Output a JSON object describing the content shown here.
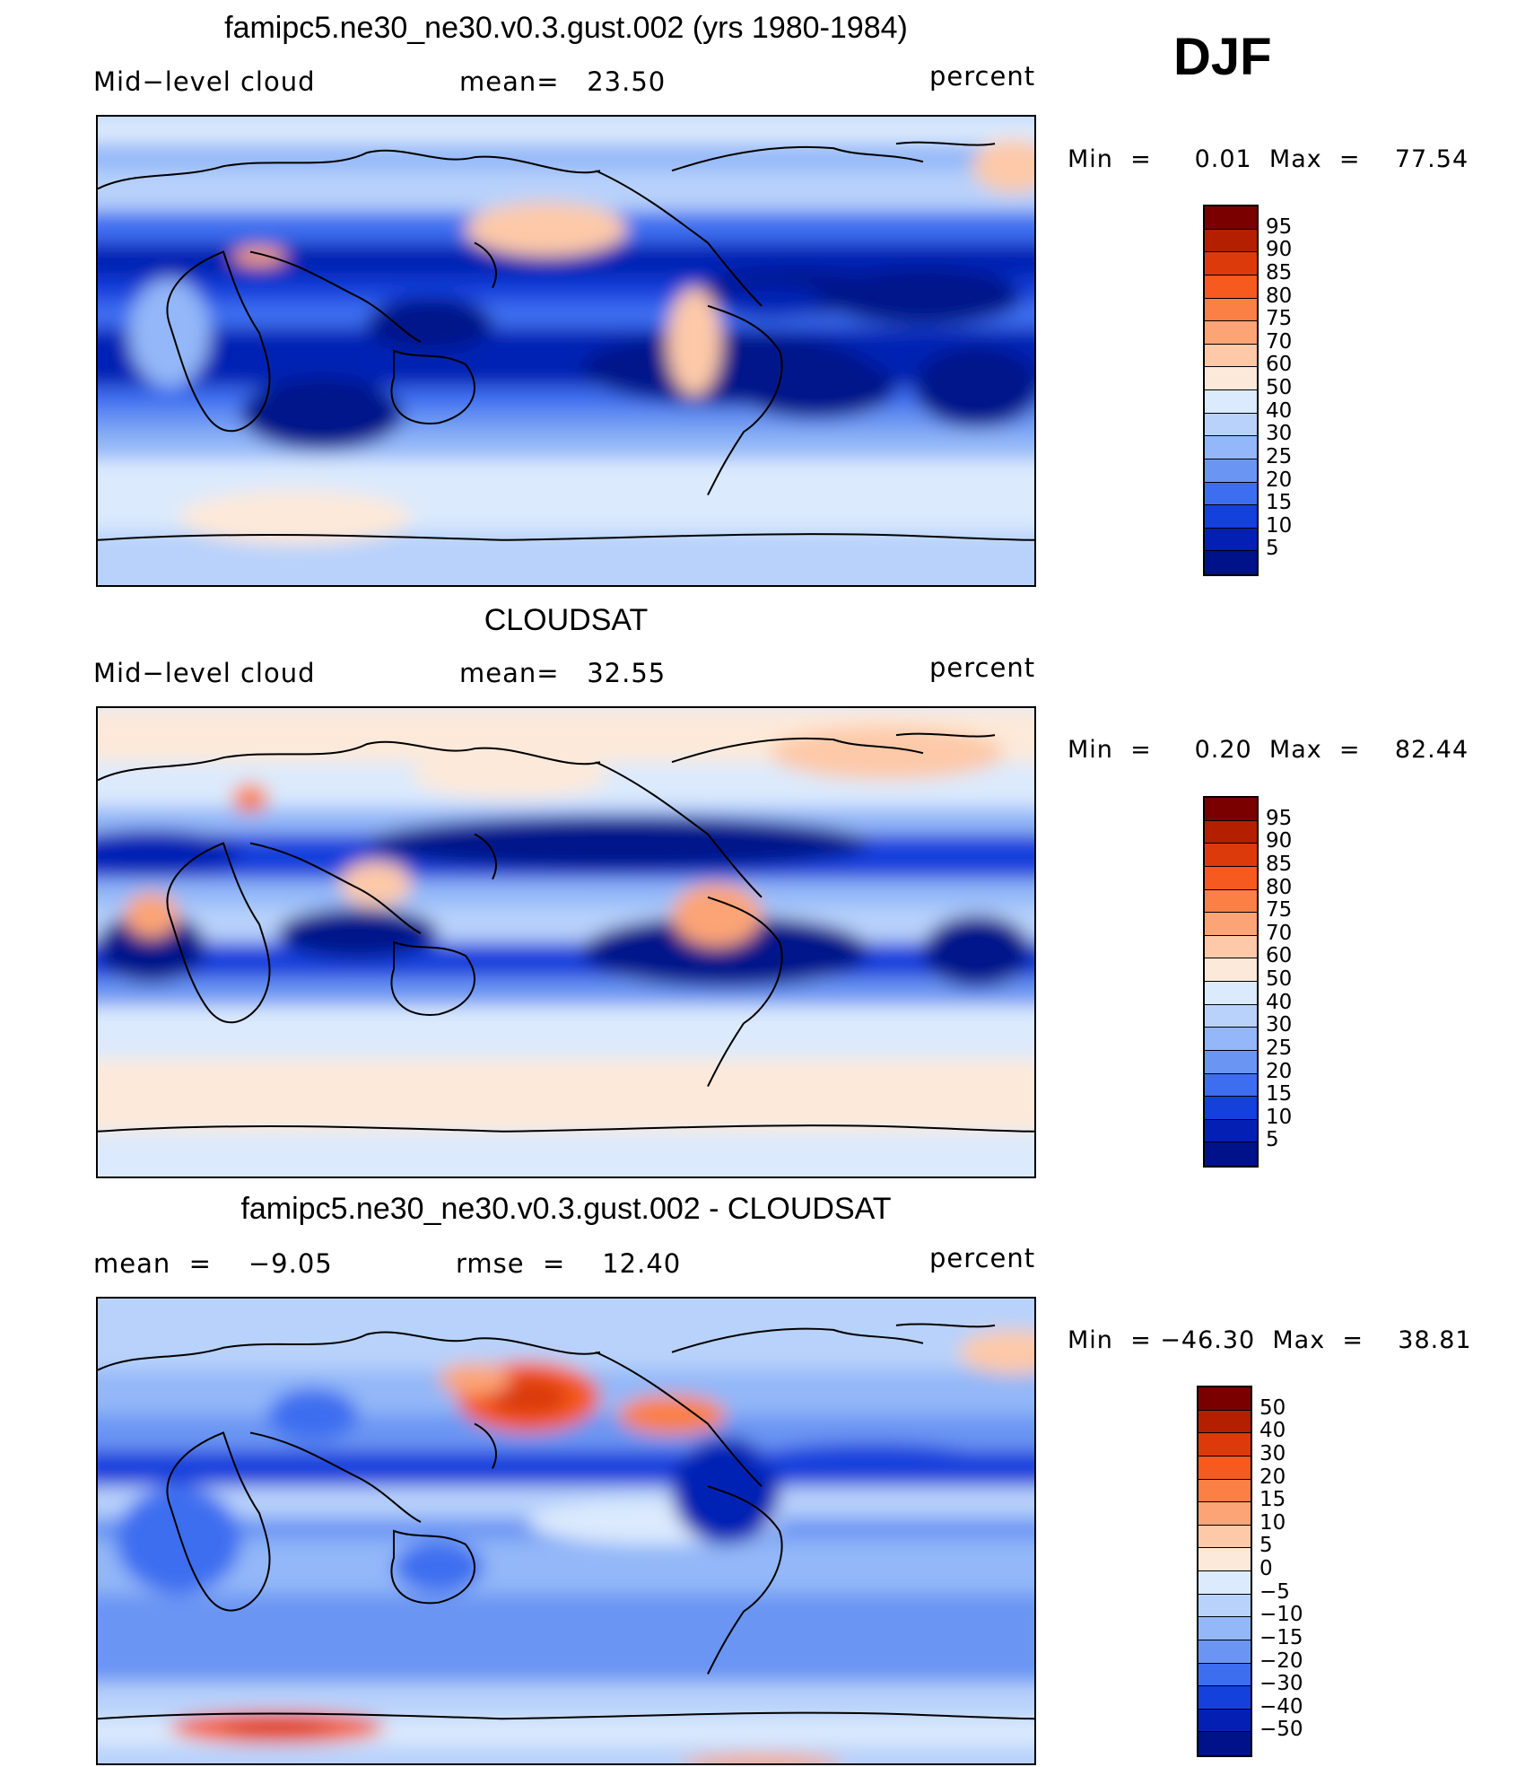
{
  "season": "DJF",
  "panels": [
    {
      "title": "famipc5.ne30_ne30.v0.3.gust.002 (yrs 1980-1984)",
      "left_label": "Mid−level cloud",
      "center_label": "mean=   23.50",
      "units": "percent",
      "minmax": "Min  =     0.01  Max  =    77.54",
      "colorbar": {
        "labels": [
          "95",
          "90",
          "85",
          "80",
          "75",
          "70",
          "60",
          "50",
          "40",
          "30",
          "25",
          "20",
          "15",
          "10",
          "5"
        ],
        "colors": [
          "#7a0000",
          "#b41f00",
          "#dc3a0a",
          "#f65a1e",
          "#fb8045",
          "#fca476",
          "#fdc9a8",
          "#fde9d9",
          "#dbeafd",
          "#b8d2fb",
          "#93b7f8",
          "#6b95f3",
          "#3d6ef0",
          "#1440dc",
          "#0420b4",
          "#00128a"
        ]
      },
      "map_style": "model"
    },
    {
      "title": "CLOUDSAT",
      "left_label": "Mid−level cloud",
      "center_label": "mean=   32.55",
      "units": "percent",
      "minmax": "Min  =     0.20  Max  =    82.44",
      "colorbar": {
        "labels": [
          "95",
          "90",
          "85",
          "80",
          "75",
          "70",
          "60",
          "50",
          "40",
          "30",
          "25",
          "20",
          "15",
          "10",
          "5"
        ],
        "colors": [
          "#7a0000",
          "#b41f00",
          "#dc3a0a",
          "#f65a1e",
          "#fb8045",
          "#fca476",
          "#fdc9a8",
          "#fde9d9",
          "#dbeafd",
          "#b8d2fb",
          "#93b7f8",
          "#6b95f3",
          "#3d6ef0",
          "#1440dc",
          "#0420b4",
          "#00128a"
        ]
      },
      "map_style": "obs"
    },
    {
      "title": "famipc5.ne30_ne30.v0.3.gust.002 - CLOUDSAT",
      "left_label": "mean  =    −9.05",
      "center_label": "rmse  =    12.40",
      "units": "percent",
      "minmax": "Min  = −46.30  Max  =    38.81",
      "colorbar": {
        "labels": [
          "50",
          "40",
          "30",
          "20",
          "15",
          "10",
          "5",
          "0",
          "−5",
          "−10",
          "−15",
          "−20",
          "−30",
          "−40",
          "−50"
        ],
        "colors": [
          "#7a0000",
          "#b41f00",
          "#dc3a0a",
          "#f65a1e",
          "#fb8045",
          "#fca476",
          "#fdc9a8",
          "#fde9d9",
          "#dbeafd",
          "#b8d2fb",
          "#93b7f8",
          "#6b95f3",
          "#3d6ef0",
          "#1440dc",
          "#0420b4",
          "#00128a"
        ]
      },
      "map_style": "diff"
    }
  ]
}
